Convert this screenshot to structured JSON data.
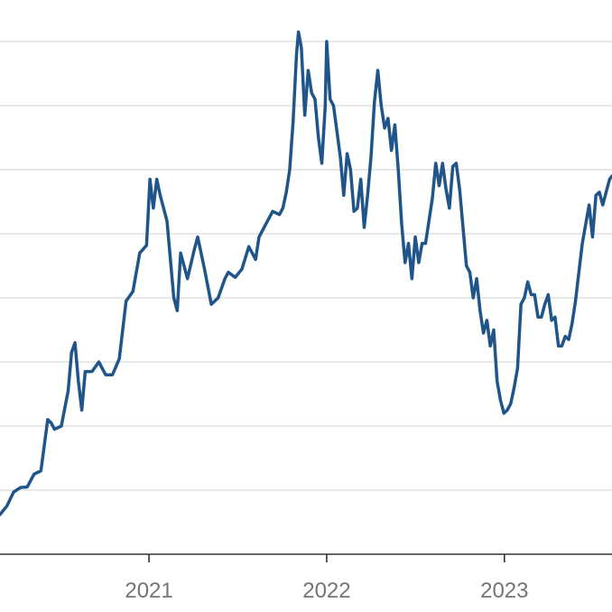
{
  "chart_data": {
    "type": "line",
    "x_axis": {
      "type": "date",
      "range": [
        "2020-03-01",
        "2023-08-10"
      ],
      "ticks": [
        {
          "value": "2021-01-01",
          "label": "2021"
        },
        {
          "value": "2022-01-01",
          "label": "2022"
        },
        {
          "value": "2023-01-01",
          "label": "2023"
        }
      ]
    },
    "y_axis": {
      "range": [
        0,
        8
      ],
      "gridlines": [
        1,
        2,
        3,
        4,
        5,
        6,
        7,
        8
      ],
      "tick_labels_visible": false
    },
    "grid": "horizontal",
    "colors": {
      "series": "#1f5588",
      "grid": "#d9d9d9",
      "axis": "#333333",
      "tick_label": "#757575"
    },
    "series": [
      {
        "points": [
          [
            "2020-03-01",
            0.62
          ],
          [
            "2020-03-15",
            0.75
          ],
          [
            "2020-03-29",
            0.97
          ],
          [
            "2020-04-12",
            1.04
          ],
          [
            "2020-04-26",
            1.05
          ],
          [
            "2020-05-10",
            1.25
          ],
          [
            "2020-05-24",
            1.3
          ],
          [
            "2020-06-07",
            2.1
          ],
          [
            "2020-06-14",
            2.05
          ],
          [
            "2020-06-21",
            1.95
          ],
          [
            "2020-07-05",
            2.0
          ],
          [
            "2020-07-19",
            2.55
          ],
          [
            "2020-07-26",
            3.15
          ],
          [
            "2020-08-02",
            3.3
          ],
          [
            "2020-08-09",
            2.7
          ],
          [
            "2020-08-16",
            2.25
          ],
          [
            "2020-08-23",
            2.85
          ],
          [
            "2020-09-06",
            2.85
          ],
          [
            "2020-09-20",
            3.0
          ],
          [
            "2020-10-04",
            2.8
          ],
          [
            "2020-10-18",
            2.8
          ],
          [
            "2020-11-01",
            3.05
          ],
          [
            "2020-11-15",
            3.95
          ],
          [
            "2020-11-29",
            4.1
          ],
          [
            "2020-12-13",
            4.7
          ],
          [
            "2020-12-27",
            4.82
          ],
          [
            "2021-01-03",
            5.85
          ],
          [
            "2021-01-10",
            5.4
          ],
          [
            "2021-01-17",
            5.85
          ],
          [
            "2021-01-24",
            5.6
          ],
          [
            "2021-02-07",
            5.2
          ],
          [
            "2021-02-14",
            4.6
          ],
          [
            "2021-02-21",
            4.0
          ],
          [
            "2021-02-28",
            3.8
          ],
          [
            "2021-03-07",
            4.7
          ],
          [
            "2021-03-14",
            4.5
          ],
          [
            "2021-03-21",
            4.3
          ],
          [
            "2021-04-04",
            4.75
          ],
          [
            "2021-04-11",
            4.95
          ],
          [
            "2021-04-25",
            4.45
          ],
          [
            "2021-05-09",
            3.9
          ],
          [
            "2021-05-23",
            4.0
          ],
          [
            "2021-06-06",
            4.3
          ],
          [
            "2021-06-13",
            4.4
          ],
          [
            "2021-06-27",
            4.32
          ],
          [
            "2021-07-11",
            4.45
          ],
          [
            "2021-07-25",
            4.8
          ],
          [
            "2021-08-08",
            4.6
          ],
          [
            "2021-08-15",
            4.95
          ],
          [
            "2021-08-29",
            5.15
          ],
          [
            "2021-09-12",
            5.35
          ],
          [
            "2021-09-26",
            5.3
          ],
          [
            "2021-10-03",
            5.4
          ],
          [
            "2021-10-10",
            5.65
          ],
          [
            "2021-10-17",
            6.0
          ],
          [
            "2021-10-24",
            6.75
          ],
          [
            "2021-10-31",
            7.8
          ],
          [
            "2021-11-04",
            8.15
          ],
          [
            "2021-11-10",
            7.9
          ],
          [
            "2021-11-17",
            6.85
          ],
          [
            "2021-11-24",
            7.55
          ],
          [
            "2021-12-01",
            7.2
          ],
          [
            "2021-12-08",
            7.1
          ],
          [
            "2021-12-15",
            6.5
          ],
          [
            "2021-12-22",
            6.1
          ],
          [
            "2021-12-29",
            7.0
          ],
          [
            "2022-01-01",
            8.0
          ],
          [
            "2022-01-08",
            7.1
          ],
          [
            "2022-01-15",
            7.0
          ],
          [
            "2022-01-22",
            6.6
          ],
          [
            "2022-01-29",
            6.2
          ],
          [
            "2022-02-05",
            5.6
          ],
          [
            "2022-02-12",
            6.25
          ],
          [
            "2022-02-19",
            6.0
          ],
          [
            "2022-02-26",
            5.35
          ],
          [
            "2022-03-05",
            5.4
          ],
          [
            "2022-03-12",
            5.85
          ],
          [
            "2022-03-19",
            5.1
          ],
          [
            "2022-03-26",
            5.6
          ],
          [
            "2022-04-02",
            6.2
          ],
          [
            "2022-04-09",
            7.05
          ],
          [
            "2022-04-16",
            7.55
          ],
          [
            "2022-04-23",
            7.0
          ],
          [
            "2022-04-30",
            6.65
          ],
          [
            "2022-05-07",
            6.8
          ],
          [
            "2022-05-14",
            6.3
          ],
          [
            "2022-05-21",
            6.7
          ],
          [
            "2022-05-28",
            6.0
          ],
          [
            "2022-06-04",
            5.15
          ],
          [
            "2022-06-11",
            4.55
          ],
          [
            "2022-06-18",
            4.85
          ],
          [
            "2022-06-25",
            4.3
          ],
          [
            "2022-07-02",
            4.95
          ],
          [
            "2022-07-09",
            4.55
          ],
          [
            "2022-07-16",
            4.85
          ],
          [
            "2022-07-23",
            4.85
          ],
          [
            "2022-07-30",
            5.2
          ],
          [
            "2022-08-06",
            5.55
          ],
          [
            "2022-08-13",
            6.1
          ],
          [
            "2022-08-20",
            5.75
          ],
          [
            "2022-08-27",
            6.1
          ],
          [
            "2022-09-03",
            5.7
          ],
          [
            "2022-09-10",
            5.4
          ],
          [
            "2022-09-17",
            6.05
          ],
          [
            "2022-09-24",
            6.1
          ],
          [
            "2022-10-01",
            5.7
          ],
          [
            "2022-10-08",
            5.1
          ],
          [
            "2022-10-15",
            4.5
          ],
          [
            "2022-10-22",
            4.4
          ],
          [
            "2022-10-29",
            4.0
          ],
          [
            "2022-11-05",
            4.3
          ],
          [
            "2022-11-12",
            3.8
          ],
          [
            "2022-11-19",
            3.45
          ],
          [
            "2022-11-26",
            3.65
          ],
          [
            "2022-12-03",
            3.25
          ],
          [
            "2022-12-10",
            3.5
          ],
          [
            "2022-12-17",
            2.7
          ],
          [
            "2022-12-24",
            2.4
          ],
          [
            "2022-12-31",
            2.2
          ],
          [
            "2023-01-07",
            2.25
          ],
          [
            "2023-01-14",
            2.35
          ],
          [
            "2023-01-21",
            2.6
          ],
          [
            "2023-01-28",
            2.9
          ],
          [
            "2023-02-04",
            3.9
          ],
          [
            "2023-02-11",
            4.0
          ],
          [
            "2023-02-18",
            4.25
          ],
          [
            "2023-02-25",
            4.05
          ],
          [
            "2023-03-04",
            4.05
          ],
          [
            "2023-03-11",
            3.7
          ],
          [
            "2023-03-18",
            3.7
          ],
          [
            "2023-03-25",
            3.9
          ],
          [
            "2023-04-01",
            4.05
          ],
          [
            "2023-04-08",
            3.65
          ],
          [
            "2023-04-15",
            3.7
          ],
          [
            "2023-04-22",
            3.25
          ],
          [
            "2023-04-29",
            3.25
          ],
          [
            "2023-05-06",
            3.4
          ],
          [
            "2023-05-13",
            3.35
          ],
          [
            "2023-05-20",
            3.6
          ],
          [
            "2023-05-27",
            3.95
          ],
          [
            "2023-06-03",
            4.4
          ],
          [
            "2023-06-10",
            4.85
          ],
          [
            "2023-06-17",
            5.15
          ],
          [
            "2023-06-24",
            5.45
          ],
          [
            "2023-07-01",
            4.95
          ],
          [
            "2023-07-08",
            5.6
          ],
          [
            "2023-07-15",
            5.65
          ],
          [
            "2023-07-22",
            5.45
          ],
          [
            "2023-07-29",
            5.65
          ],
          [
            "2023-08-05",
            5.85
          ],
          [
            "2023-08-10",
            5.9
          ]
        ]
      }
    ]
  }
}
